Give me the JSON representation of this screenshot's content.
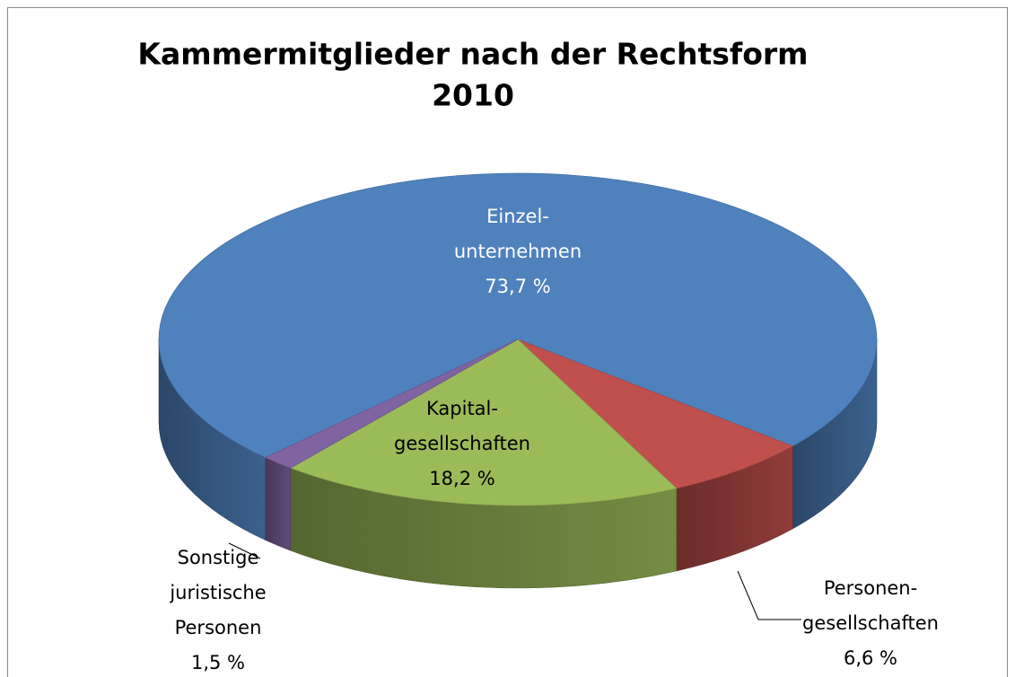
{
  "chart_data": {
    "type": "pie",
    "title": [
      "Kammermitglieder nach der Rechtsform",
      "2010"
    ],
    "categories": [
      [
        "Einzel-",
        "unternehmen"
      ],
      [
        "Personen-",
        "gesellschaften"
      ],
      [
        "Kapital-",
        "gesellschaften"
      ],
      [
        "Sonstige",
        "juristische",
        "Personen"
      ]
    ],
    "values": [
      73.7,
      6.6,
      18.2,
      1.5
    ],
    "value_labels": [
      "73,7 %",
      "6,6 %",
      "18,2 %",
      "1,5 %"
    ],
    "colors": [
      "#4f81bd",
      "#c0504d",
      "#9bbb59",
      "#8064a2"
    ]
  }
}
